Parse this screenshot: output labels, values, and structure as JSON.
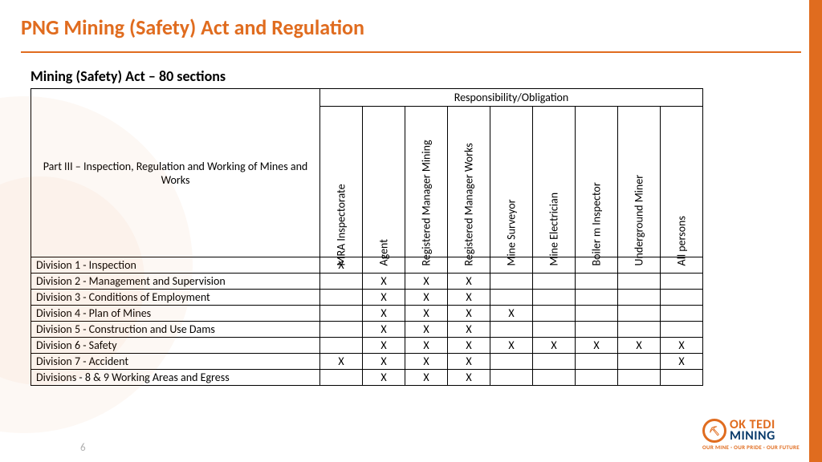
{
  "colors": {
    "accent": "#e06c1f",
    "navy": "#0a3b6b",
    "border": "#000000",
    "bg": "#ffffff",
    "pagenum": "#b0b0b0"
  },
  "title": "PNG Mining (Safety) Act and Regulation",
  "subtitle": "Mining (Safety) Act – 80 sections",
  "page_number": "6",
  "table": {
    "corner_label": "Part III – Inspection, Regulation and Working of Mines and Works",
    "group_header": "Responsibility/Obligation",
    "columns": [
      "MRA Inspectorate",
      "Agent",
      "Registered Manager Mining",
      "Registered Manager Works",
      "Mine Surveyor",
      "Mine Electrician",
      "Boiler m Inspector",
      "Underground Miner",
      "All persons"
    ],
    "rows": [
      {
        "label": "Division 1 - Inspection",
        "cells": [
          "X",
          "",
          "",
          "",
          "",
          "",
          "",
          "",
          ""
        ]
      },
      {
        "label": "Division 2 - Management and Supervision",
        "cells": [
          "",
          "X",
          "X",
          "X",
          "",
          "",
          "",
          "",
          ""
        ]
      },
      {
        "label": "Division 3 - Conditions of Employment",
        "cells": [
          "",
          "X",
          "X",
          "X",
          "",
          "",
          "",
          "",
          ""
        ]
      },
      {
        "label": "Division 4 - Plan of Mines",
        "cells": [
          "",
          "X",
          "X",
          "X",
          "X",
          "",
          "",
          "",
          ""
        ]
      },
      {
        "label": "Division 5 - Construction and Use Dams",
        "cells": [
          "",
          "X",
          "X",
          "X",
          "",
          "",
          "",
          "",
          ""
        ]
      },
      {
        "label": "Division 6 - Safety",
        "cells": [
          "",
          "X",
          "X",
          "X",
          "X",
          "X",
          "X",
          "X",
          "X"
        ]
      },
      {
        "label": "Division 7 - Accident",
        "cells": [
          "X",
          "X",
          "X",
          "X",
          "",
          "",
          "",
          "",
          "X"
        ]
      },
      {
        "label": "Divisions - 8 & 9 Working Areas and Egress",
        "cells": [
          "",
          "X",
          "X",
          "X",
          "",
          "",
          "",
          "",
          ""
        ]
      }
    ]
  },
  "logo": {
    "mark": "OTML",
    "line1": "OK TEDI",
    "line2": "MINING",
    "tagline": "OUR MINE · OUR PRIDE · OUR FUTURE"
  }
}
